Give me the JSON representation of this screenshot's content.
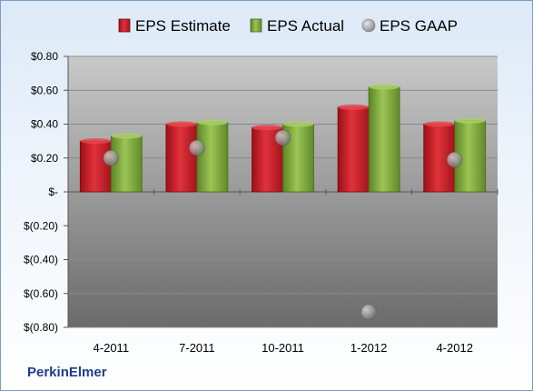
{
  "chart_data": {
    "type": "bar",
    "categories": [
      "4-2011",
      "7-2011",
      "10-2011",
      "1-2012",
      "4-2012"
    ],
    "series": [
      {
        "name": "EPS Estimate",
        "values": [
          0.3,
          0.4,
          0.38,
          0.5,
          0.4
        ],
        "color": "#c8202a",
        "mark": "bar"
      },
      {
        "name": "EPS Actual",
        "values": [
          0.33,
          0.41,
          0.4,
          0.62,
          0.42
        ],
        "color": "#7aa33a",
        "mark": "bar"
      },
      {
        "name": "EPS GAAP",
        "values": [
          0.2,
          0.26,
          0.32,
          -0.71,
          0.19
        ],
        "color": "#9a9a9a",
        "mark": "point"
      }
    ],
    "ylim": [
      -0.8,
      0.8
    ],
    "yticks": [
      0.8,
      0.6,
      0.4,
      0.2,
      0,
      -0.2,
      -0.4,
      -0.6,
      -0.8
    ],
    "ytick_labels": [
      "$0.80",
      "$0.60",
      "$0.40",
      "$0.20",
      "$-",
      "$(0.20)",
      "$(0.40)",
      "$(0.60)",
      "$(0.80)"
    ],
    "legend_position": "top",
    "grid": true
  },
  "footer": {
    "company": "PerkinElmer"
  }
}
